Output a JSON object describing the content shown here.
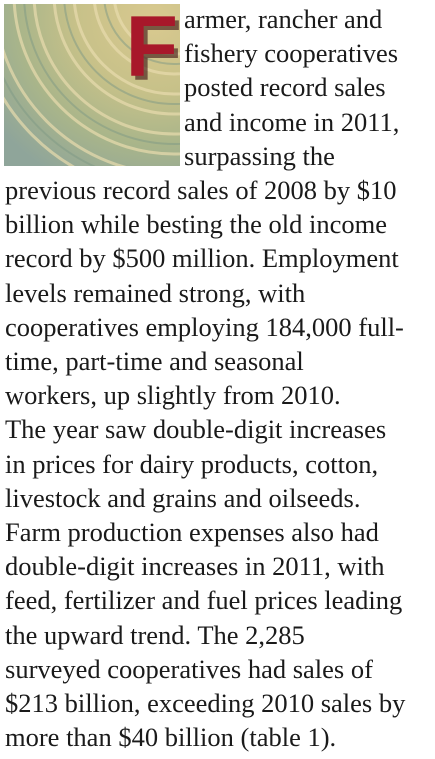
{
  "drop_cap": "F",
  "lines": [
    "armer, rancher and",
    "fishery cooperatives",
    "posted record sales",
    "and income in 2011,",
    "surpassing the",
    "previous record sales of 2008 by $10",
    "billion while besting the old income",
    "record by $500 million. Employment",
    "levels remained strong, with",
    "cooperatives employing 184,000 full-",
    "time, part-time and seasonal",
    "workers, up slightly from 2010.",
    "The year saw double-digit increases",
    "in prices for dairy products, cotton,",
    "livestock and grains and oilseeds.",
    "Farm production expenses also had",
    "double-digit increases in 2011, with",
    "feed, fertilizer and fuel prices leading",
    "the upward trend. The 2,285",
    "surveyed cooperatives had sales of",
    "$213 billion, exceeding 2010 sales by",
    "more than $40 billion (table 1)."
  ]
}
